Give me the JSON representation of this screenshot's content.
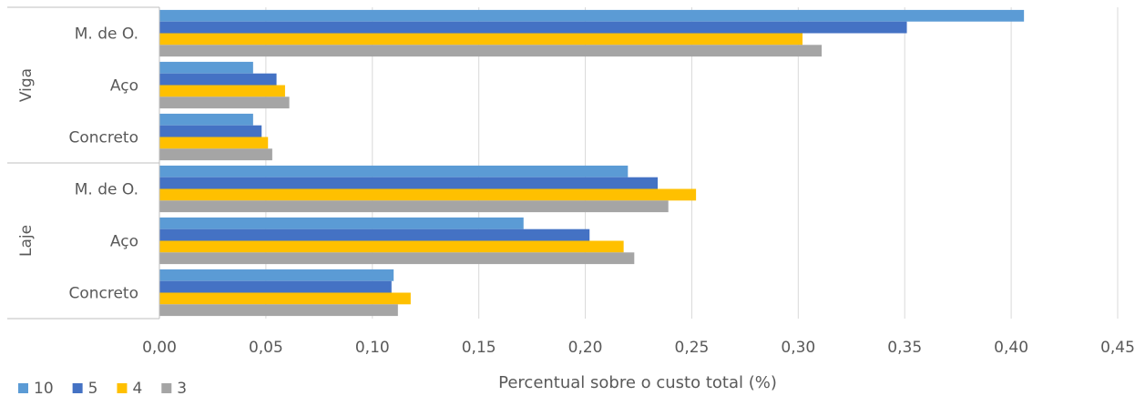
{
  "chart_data": {
    "type": "bar",
    "orientation": "horizontal",
    "title": "",
    "xlabel": "Percentual sobre o custo total (%)",
    "ylabel": "",
    "xlim": [
      0,
      0.45
    ],
    "x_ticks": [
      "0,00",
      "0,05",
      "0,10",
      "0,15",
      "0,20",
      "0,25",
      "0,30",
      "0,35",
      "0,40",
      "0,45"
    ],
    "grid": true,
    "legend_position": "bottom-left",
    "groups": [
      {
        "label": "Viga",
        "categories": [
          "M. de O.",
          "Aço",
          "Concreto"
        ]
      },
      {
        "label": "Laje",
        "categories": [
          "M. de O.",
          "Aço",
          "Concreto"
        ]
      }
    ],
    "series": [
      {
        "name": "10",
        "color": "#5b9bd5",
        "values": [
          0.406,
          0.044,
          0.044,
          0.22,
          0.171,
          0.11
        ]
      },
      {
        "name": "5",
        "color": "#4472c4",
        "values": [
          0.351,
          0.055,
          0.048,
          0.234,
          0.202,
          0.109
        ]
      },
      {
        "name": "4",
        "color": "#ffc000",
        "values": [
          0.302,
          0.059,
          0.051,
          0.252,
          0.218,
          0.118
        ]
      },
      {
        "name": "3",
        "color": "#a5a5a5",
        "values": [
          0.311,
          0.061,
          0.053,
          0.239,
          0.223,
          0.112
        ]
      }
    ]
  }
}
